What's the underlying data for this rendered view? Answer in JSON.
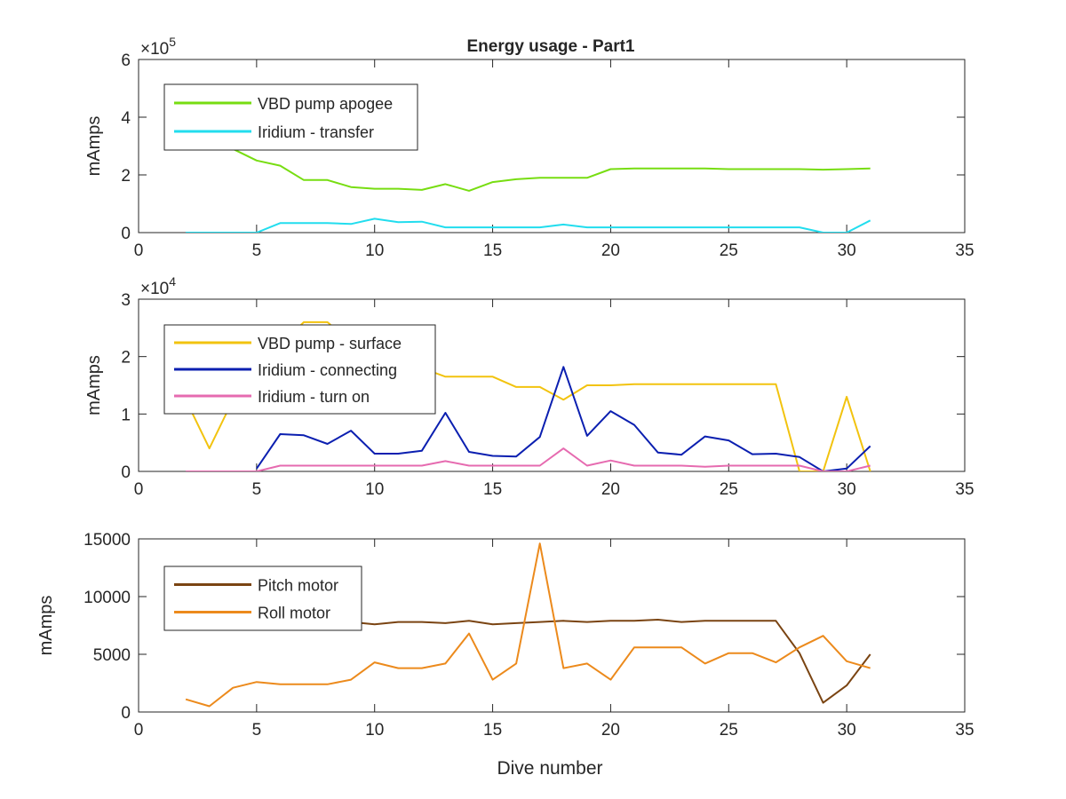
{
  "figure": {
    "title": "Energy usage - Part1"
  },
  "chart_data": [
    {
      "type": "line",
      "title": "Energy usage - Part1",
      "xlabel": "",
      "ylabel": "mAmps",
      "xlim": [
        0,
        35
      ],
      "ylim": [
        0,
        600000
      ],
      "x_ticks": [
        "0",
        "5",
        "10",
        "15",
        "20",
        "25",
        "30",
        "35"
      ],
      "y_ticks": [
        "0",
        "2",
        "4",
        "6"
      ],
      "y_tick_values": [
        0,
        200000,
        400000,
        600000
      ],
      "exponent_prefix": "×10",
      "exponent_power": "5",
      "grid": false,
      "legend": "top-left",
      "series": [
        {
          "name": "VBD pump apogee",
          "color": "#77dd11",
          "x": [
            2,
            3,
            4,
            5,
            6,
            7,
            8,
            9,
            10,
            11,
            12,
            13,
            14,
            15,
            16,
            17,
            18,
            19,
            20,
            21,
            22,
            23,
            24,
            25,
            26,
            27,
            28,
            29,
            30,
            31
          ],
          "y": [
            390000,
            340000,
            290000,
            250000,
            232000,
            182000,
            182000,
            158000,
            152000,
            152000,
            148000,
            168000,
            145000,
            175000,
            185000,
            190000,
            190000,
            190000,
            220000,
            222000,
            222000,
            222000,
            222000,
            220000,
            220000,
            220000,
            220000,
            218000,
            220000,
            222000
          ]
        },
        {
          "name": "Iridium - transfer",
          "color": "#22ddee",
          "x": [
            2,
            3,
            4,
            5,
            6,
            7,
            8,
            9,
            10,
            11,
            12,
            13,
            14,
            15,
            16,
            17,
            18,
            19,
            20,
            21,
            22,
            23,
            24,
            25,
            26,
            27,
            28,
            29,
            30,
            31
          ],
          "y": [
            0,
            0,
            0,
            0,
            33000,
            33000,
            33000,
            30000,
            48000,
            36000,
            38000,
            18000,
            18000,
            18000,
            18000,
            18000,
            28000,
            18000,
            18000,
            18000,
            18000,
            18000,
            18000,
            18000,
            18000,
            18000,
            18000,
            0,
            0,
            42000
          ]
        }
      ]
    },
    {
      "type": "line",
      "title": "",
      "xlabel": "",
      "ylabel": "mAmps",
      "xlim": [
        0,
        35
      ],
      "ylim": [
        0,
        30000
      ],
      "x_ticks": [
        "0",
        "5",
        "10",
        "15",
        "20",
        "25",
        "30",
        "35"
      ],
      "y_ticks": [
        "0",
        "1",
        "2",
        "3"
      ],
      "y_tick_values": [
        0,
        10000,
        20000,
        30000
      ],
      "exponent_prefix": "×10",
      "exponent_power": "4",
      "grid": false,
      "legend": "top-left",
      "series": [
        {
          "name": "VBD pump - surface",
          "color": "#f2c30f",
          "x": [
            2,
            3,
            4,
            5,
            6,
            7,
            8,
            9,
            10,
            11,
            12,
            13,
            14,
            15,
            16,
            17,
            18,
            19,
            20,
            21,
            22,
            23,
            24,
            25,
            26,
            27,
            28,
            29,
            30,
            31
          ],
          "y": [
            12500,
            4000,
            12500,
            18500,
            22000,
            26000,
            26000,
            22500,
            20500,
            19000,
            18000,
            16500,
            16500,
            16500,
            14700,
            14700,
            12500,
            15000,
            15000,
            15200,
            15200,
            15200,
            15200,
            15200,
            15200,
            15200,
            0,
            0,
            13000,
            0
          ]
        },
        {
          "name": "Iridium - connecting",
          "color": "#0b1fb0",
          "x": [
            5,
            6,
            7,
            8,
            9,
            10,
            11,
            12,
            13,
            14,
            15,
            16,
            17,
            18,
            19,
            20,
            21,
            22,
            23,
            24,
            25,
            26,
            27,
            28,
            29,
            30,
            31
          ],
          "y": [
            500,
            6500,
            6300,
            4800,
            7100,
            3100,
            3100,
            3600,
            10200,
            3400,
            2700,
            2600,
            6000,
            18200,
            6200,
            10500,
            8100,
            3300,
            2900,
            6100,
            5400,
            3000,
            3100,
            2500,
            0,
            500,
            4400
          ]
        },
        {
          "name": "Iridium - turn on",
          "color": "#e66bb0",
          "x": [
            2,
            3,
            4,
            5,
            6,
            7,
            8,
            9,
            10,
            11,
            12,
            13,
            14,
            15,
            16,
            17,
            18,
            19,
            20,
            21,
            22,
            23,
            24,
            25,
            26,
            27,
            28,
            29,
            30,
            31
          ],
          "y": [
            0,
            0,
            0,
            0,
            1000,
            1000,
            1000,
            1000,
            1000,
            1000,
            1000,
            1800,
            1000,
            1000,
            1000,
            1000,
            4000,
            1000,
            1900,
            1000,
            1000,
            1000,
            800,
            1000,
            1000,
            1000,
            1000,
            0,
            0,
            1000
          ]
        }
      ]
    },
    {
      "type": "line",
      "title": "",
      "xlabel": "Dive number",
      "ylabel": "mAmps",
      "xlim": [
        0,
        35
      ],
      "ylim": [
        0,
        15000
      ],
      "x_ticks": [
        "0",
        "5",
        "10",
        "15",
        "20",
        "25",
        "30",
        "35"
      ],
      "y_ticks": [
        "0",
        "5000",
        "10000",
        "15000"
      ],
      "y_tick_values": [
        0,
        5000,
        10000,
        15000
      ],
      "exponent_prefix": "",
      "exponent_power": "",
      "grid": false,
      "legend": "top-left",
      "series": [
        {
          "name": "Pitch motor",
          "color": "#7a4412",
          "x": [
            2,
            3,
            4,
            5,
            6,
            7,
            8,
            9,
            10,
            11,
            12,
            13,
            14,
            15,
            16,
            17,
            18,
            19,
            20,
            21,
            22,
            23,
            24,
            25,
            26,
            27,
            28,
            29,
            30,
            31
          ],
          "y": [
            7800,
            7800,
            7800,
            7800,
            7800,
            7800,
            7800,
            7800,
            7600,
            7800,
            7800,
            7700,
            7900,
            7600,
            7700,
            7800,
            7900,
            7800,
            7900,
            7900,
            8000,
            7800,
            7900,
            7900,
            7900,
            7900,
            5100,
            800,
            2300,
            5000
          ]
        },
        {
          "name": "Roll motor",
          "color": "#ec8a1c",
          "x": [
            2,
            3,
            4,
            5,
            6,
            7,
            8,
            9,
            10,
            11,
            12,
            13,
            14,
            15,
            16,
            17,
            18,
            19,
            20,
            21,
            22,
            23,
            24,
            25,
            26,
            27,
            28,
            29,
            30,
            31
          ],
          "y": [
            1100,
            500,
            2100,
            2600,
            2400,
            2400,
            2400,
            2800,
            4300,
            3800,
            3800,
            4200,
            6800,
            2800,
            4200,
            14600,
            3800,
            4200,
            2800,
            5600,
            5600,
            5600,
            4200,
            5100,
            5100,
            4300,
            5600,
            6600,
            4400,
            3800
          ]
        }
      ]
    }
  ]
}
